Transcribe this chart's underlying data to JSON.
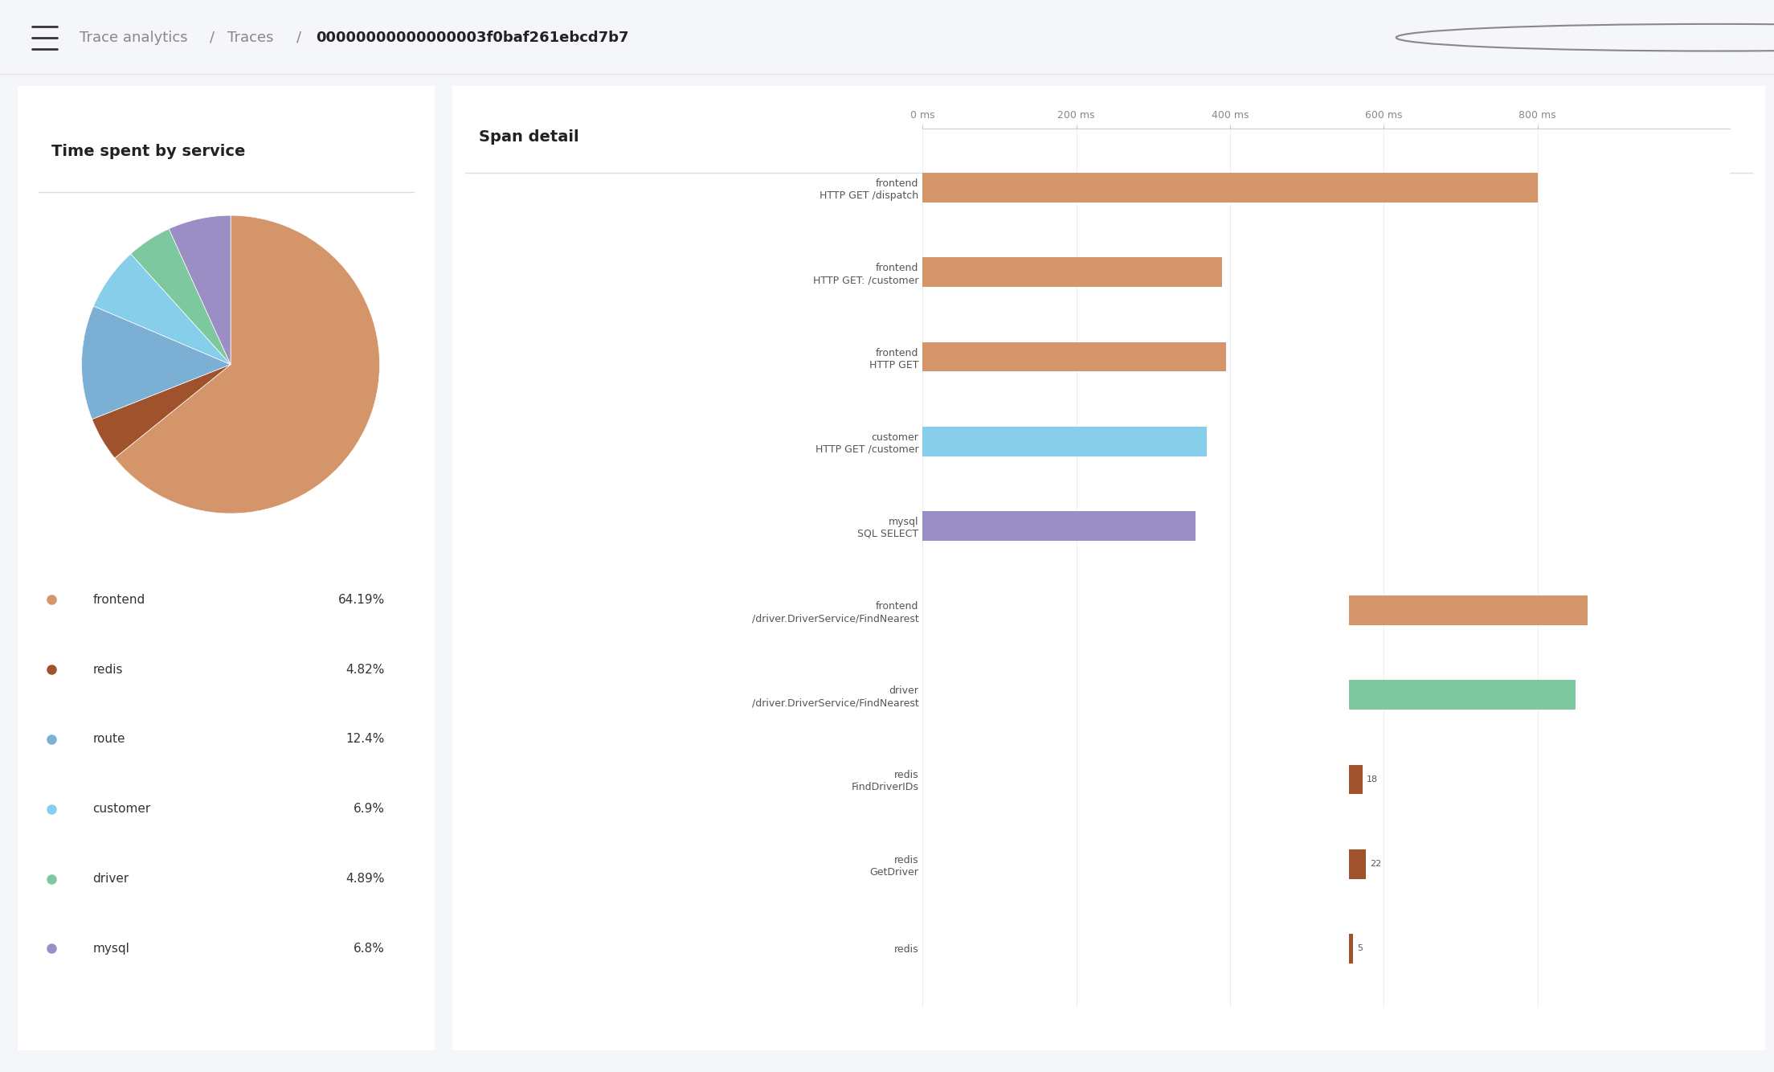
{
  "title": "Trace analytics  /  Traces  /  00000000000000003f0baf261ebcd7b7",
  "title_bold_part": "00000000000000003f0baf261ebcd7b7",
  "bg_color": "#f5f6fa",
  "panel_bg": "#ffffff",
  "header_bg": "#ffffff",
  "header_border": "#e0e0e0",
  "pie_title": "Time spent by service",
  "pie_labels": [
    "frontend",
    "redis",
    "route",
    "customer",
    "driver",
    "mysql"
  ],
  "pie_values": [
    64.19,
    4.82,
    12.4,
    6.9,
    4.89,
    6.8
  ],
  "pie_colors": [
    "#d4956a",
    "#a0522d",
    "#7bafd4",
    "#87ceeb",
    "#7ec8a0",
    "#9b8ec4"
  ],
  "pie_legend_colors": [
    "#d4956a",
    "#a0522d",
    "#7bafd4",
    "#87ceeb",
    "#7ec8a0",
    "#9b8ec4"
  ],
  "pie_percentages": [
    "64.19%",
    "4.82%",
    "12.4%",
    "6.9%",
    "4.89%",
    "6.8%"
  ],
  "span_title": "Span detail",
  "span_xlabel": "ms",
  "span_xticks": [
    0,
    200,
    400,
    600,
    800
  ],
  "span_xlabels": [
    "0 ms",
    "200 ms",
    "400 ms",
    "600 ms",
    "800 ms"
  ],
  "span_xlim": [
    0,
    1050
  ],
  "span_labels": [
    "frontend\nHTTP GET /dispatch",
    "frontend\nHTTP GET: /customer",
    "frontend\nHTTP GET",
    "customer\nHTTP GET /customer",
    "mysql\nSQL SELECT",
    "frontend\n/driver.DriverService/FindNearest",
    "driver\n/driver.DriverService/FindNearest",
    "redis\nFindDriverIDs",
    "redis\nGetDriver",
    "redis"
  ],
  "span_values": [
    800,
    390,
    395,
    370,
    355,
    310,
    295,
    18,
    22,
    5
  ],
  "span_colors": [
    "#d4956a",
    "#d4956a",
    "#d4956a",
    "#87ceeb",
    "#9b8ec4",
    "#d4956a",
    "#7ec8a0",
    "#a0522d",
    "#a0522d",
    "#a0522d"
  ],
  "span_offsets": [
    0,
    0,
    0,
    0,
    0,
    555,
    555,
    555,
    555,
    555
  ],
  "span_bar_height": 0.35,
  "span_label_ha": "right",
  "span_text_color": "#333333",
  "span_axis_color": "#cccccc"
}
